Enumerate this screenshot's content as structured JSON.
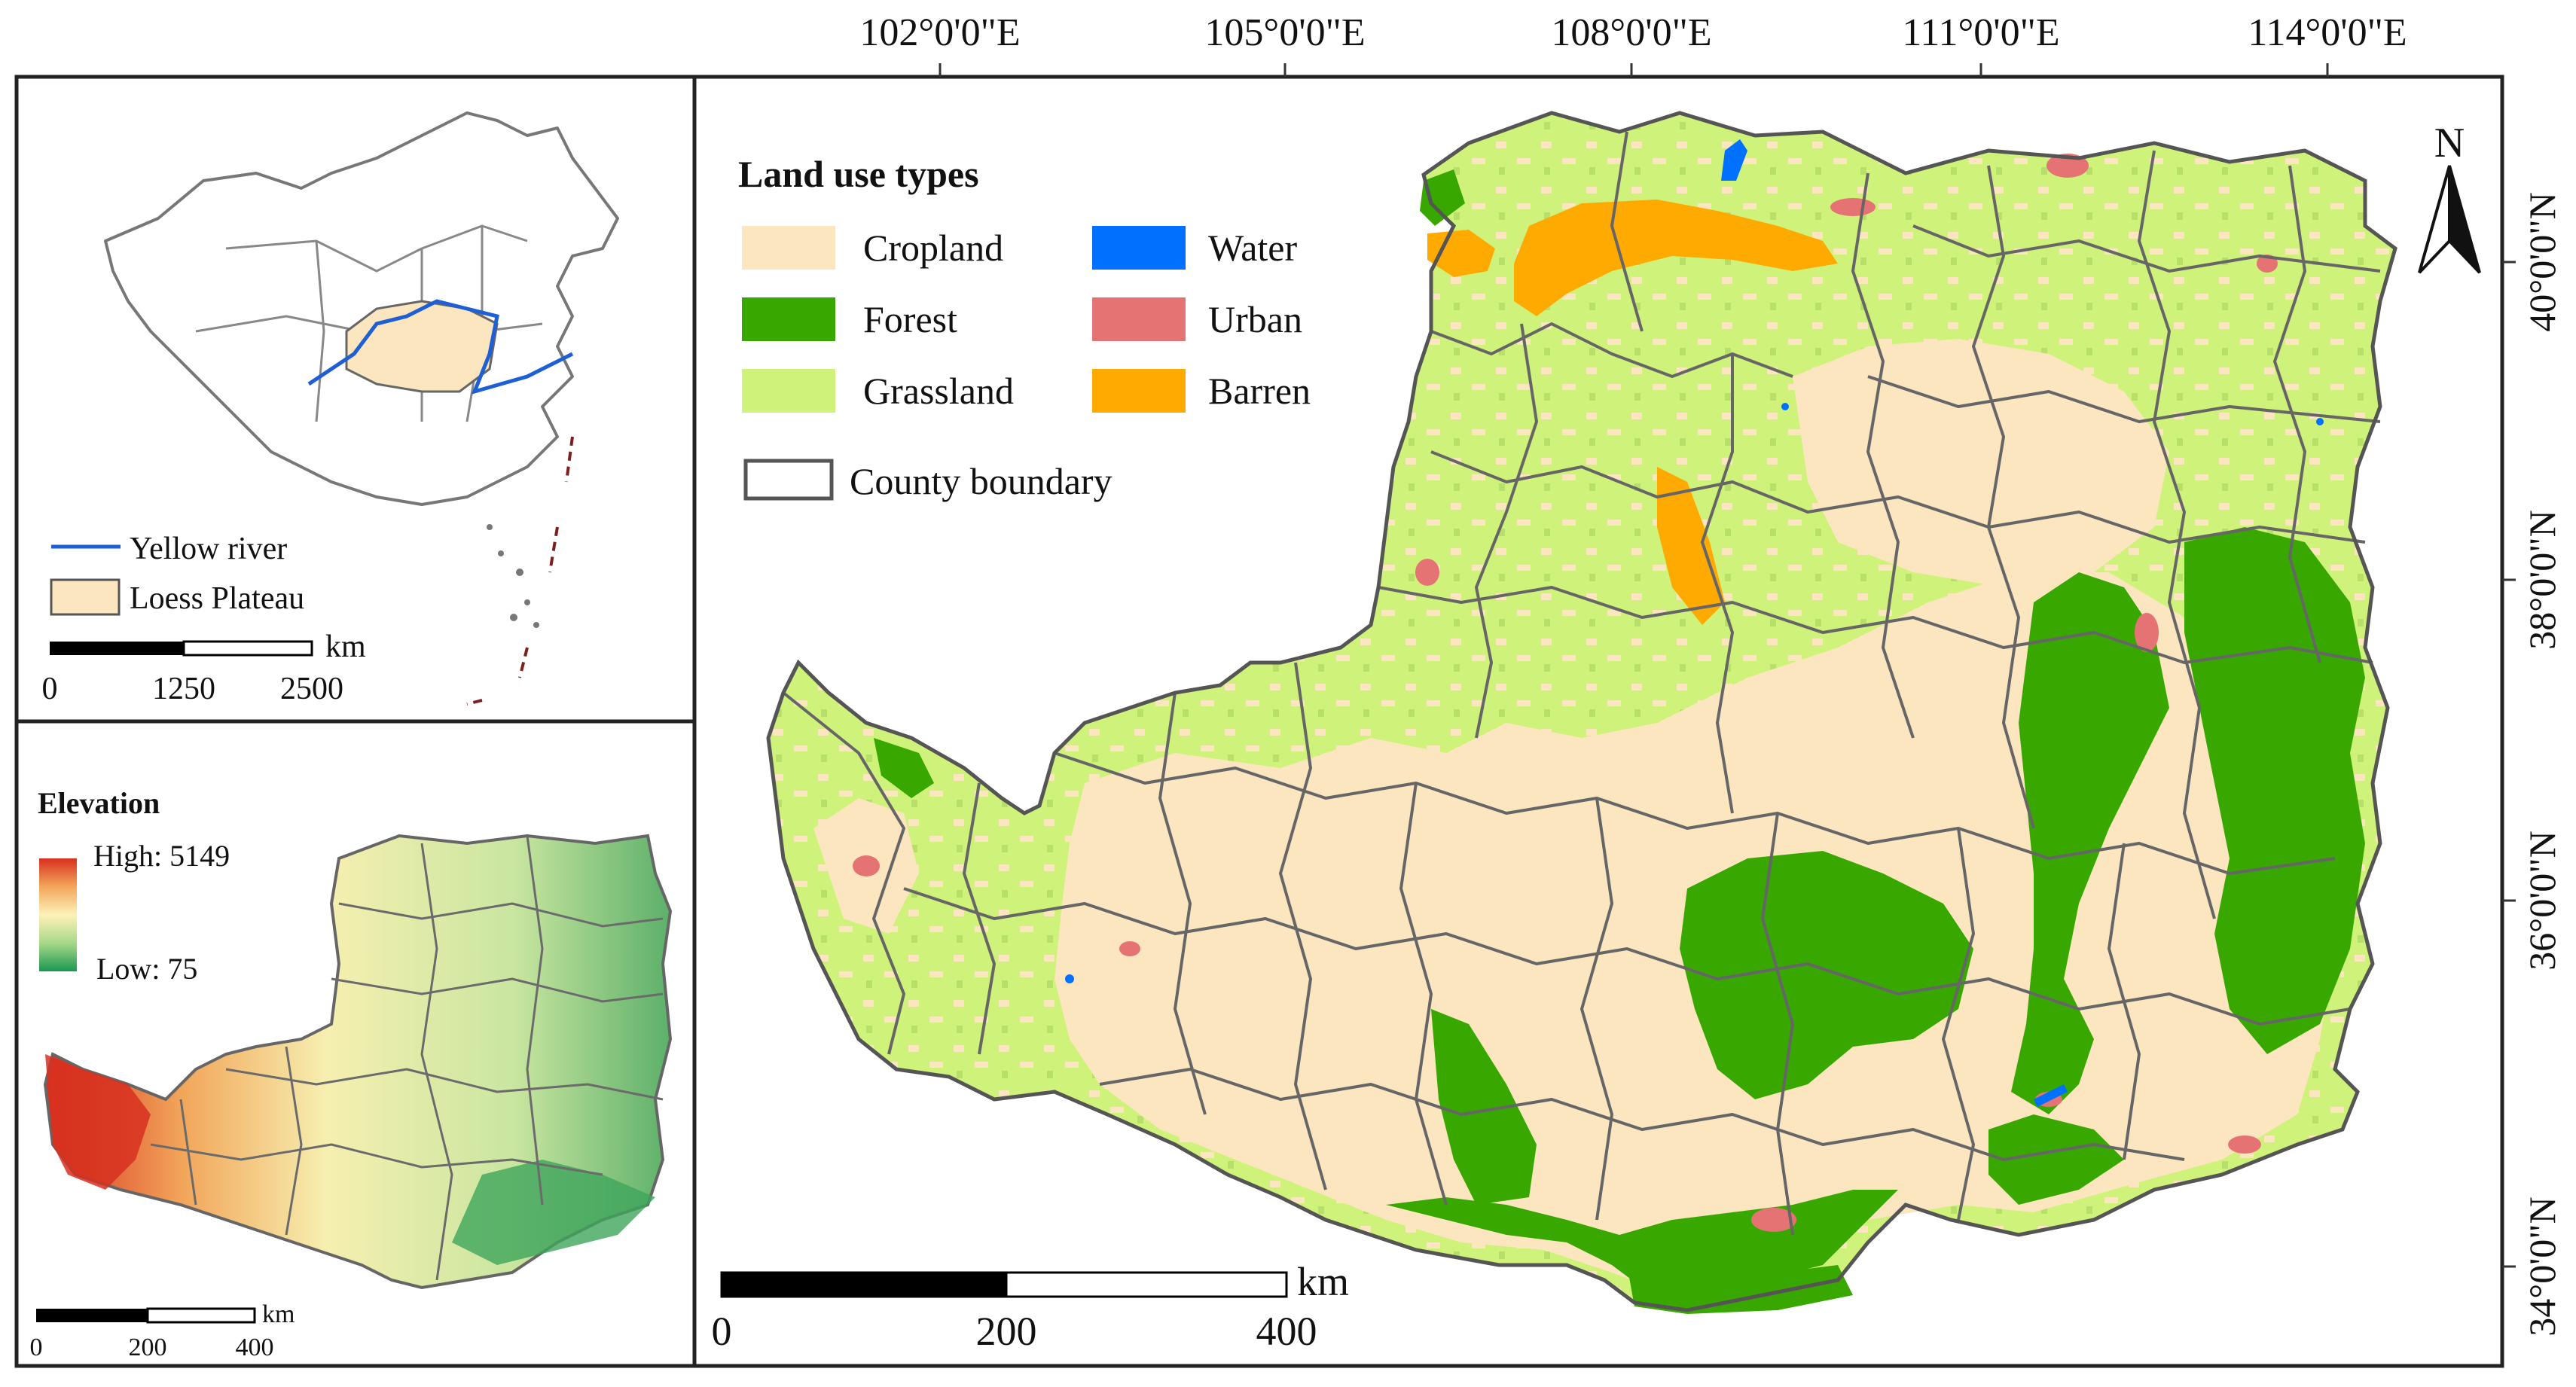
{
  "longitude_labels": [
    "102°0'0\"E",
    "105°0'0\"E",
    "108°0'0\"E",
    "111°0'0\"E",
    "114°0'0\"E"
  ],
  "latitude_labels": [
    "40°0'0\"N",
    "38°0'0\"N",
    "36°0'0\"N",
    "34°0'0\"N"
  ],
  "north_arrow_label": "N",
  "legend": {
    "title": "Land use types",
    "items": [
      {
        "label": "Cropland",
        "color": "#fce6c0"
      },
      {
        "label": "Forest",
        "color": "#38a800"
      },
      {
        "label": "Grassland",
        "color": "#cff27a"
      },
      {
        "label": "Water",
        "color": "#0070ff"
      },
      {
        "label": "Urban",
        "color": "#e57373"
      },
      {
        "label": "Barren",
        "color": "#ffaa00"
      }
    ],
    "boundary_label": "County boundary"
  },
  "main_scale": {
    "ticks": [
      "0",
      "200",
      "400"
    ],
    "unit": "km"
  },
  "inset_china": {
    "legend": [
      {
        "label": "Yellow river",
        "color": "#1f5fd6"
      },
      {
        "label": "Loess Plateau",
        "color": "#fce6c0"
      }
    ],
    "scale_ticks": [
      "0",
      "1250",
      "2500"
    ],
    "scale_unit": "km"
  },
  "inset_elevation": {
    "title": "Elevation",
    "high_label": "High: 5149",
    "low_label": "Low: 75",
    "scale_ticks": [
      "0",
      "200",
      "400"
    ],
    "scale_unit": "km"
  }
}
